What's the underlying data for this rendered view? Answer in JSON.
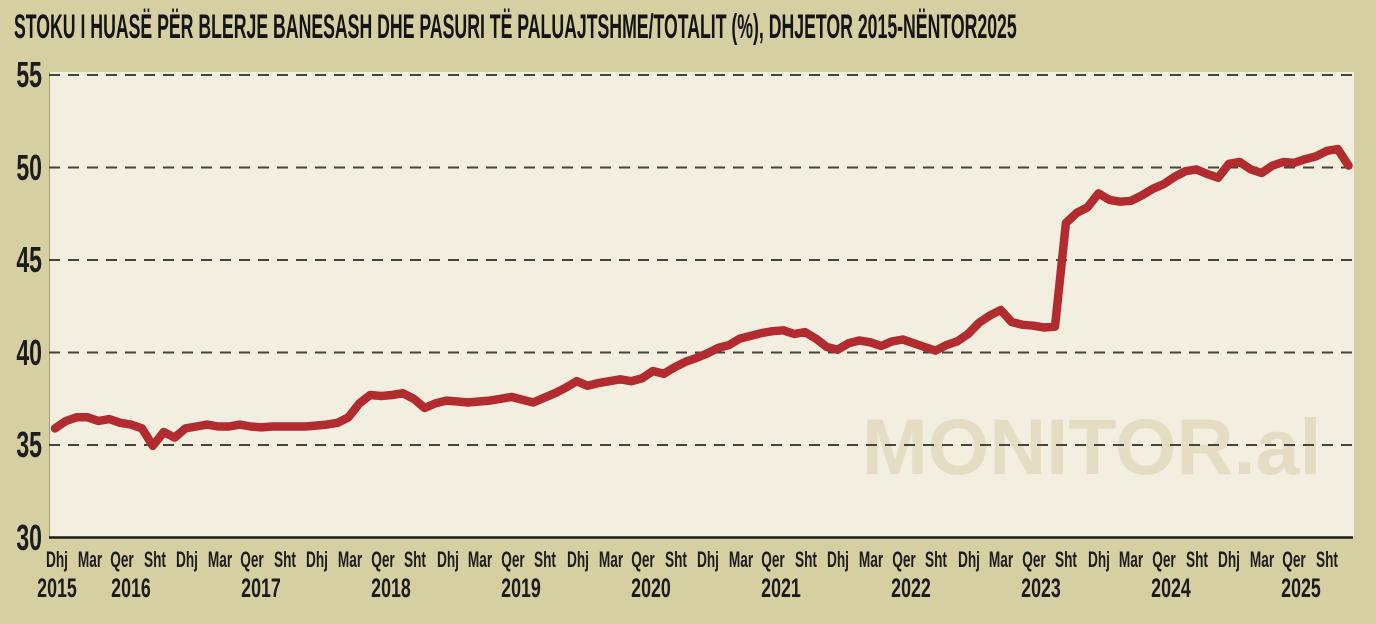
{
  "title": "STOKU I HUASË PËR BLERJE BANESASH DHE PASURI TË PALUAJTSHME/TOTALIT (%), DHJETOR 2015-NËNTOR2025",
  "watermark": "MONITOR.al",
  "colors": {
    "background": "#d6cfa2",
    "plot_background": "#f2efe1",
    "line": "#b22b2e",
    "grid": "#45453d",
    "axis": "#1c1c1c",
    "text": "#141414",
    "watermark": "#e4ddc4"
  },
  "chart_data": {
    "type": "line",
    "title": "STOKU I HUASË PËR BLERJE BANESASH DHE PASURI TË PALUAJTSHME/TOTALIT (%), DHJETOR 2015-NËNTOR2025",
    "series_name": "Stoku i huasë për blerje banesash dhe pasuri të paluajtshme / totalit (%)",
    "frequency": "monthly",
    "period_start": "Dhjetor 2015",
    "period_end": "Nëntor 2025",
    "ylim": [
      30,
      55
    ],
    "y_ticks": [
      30,
      35,
      40,
      45,
      50,
      55
    ],
    "grid": "horizontal dashed",
    "legend": "none",
    "x_tick_labels": [
      "Dhj",
      "Mar",
      "Qer",
      "Sht",
      "Dhj",
      "Mar",
      "Qer",
      "Sht",
      "Dhj",
      "Mar",
      "Qer",
      "Sht",
      "Dhj",
      "Mar",
      "Qer",
      "Sht",
      "Dhj",
      "Mar",
      "Qer",
      "Sht",
      "Dhj",
      "Mar",
      "Qer",
      "Sht",
      "Dhj",
      "Mar",
      "Qer",
      "Sht",
      "Dhj",
      "Mar",
      "Qer",
      "Sht",
      "Dhj",
      "Mar",
      "Qer",
      "Sht",
      "Dhj",
      "Mar",
      "Qer",
      "Sht"
    ],
    "year_labels": [
      "2015",
      "2016",
      "2017",
      "2018",
      "2019",
      "2020",
      "2021",
      "2022",
      "2023",
      "2024",
      "2025"
    ],
    "values": [
      35.9,
      36.3,
      36.5,
      36.5,
      36.3,
      36.4,
      36.2,
      36.1,
      35.9,
      34.95,
      35.7,
      35.4,
      35.9,
      36.0,
      36.1,
      36.0,
      36.0,
      36.1,
      36.0,
      35.95,
      36.0,
      36.0,
      36.0,
      36.0,
      36.05,
      36.1,
      36.2,
      36.5,
      37.25,
      37.7,
      37.65,
      37.7,
      37.8,
      37.5,
      37.0,
      37.25,
      37.4,
      37.35,
      37.3,
      37.35,
      37.4,
      37.5,
      37.6,
      37.45,
      37.3,
      37.55,
      37.8,
      38.1,
      38.45,
      38.2,
      38.35,
      38.45,
      38.55,
      38.45,
      38.6,
      39.0,
      38.85,
      39.2,
      39.5,
      39.7,
      39.95,
      40.25,
      40.4,
      40.75,
      40.9,
      41.05,
      41.15,
      41.2,
      41.0,
      41.1,
      40.75,
      40.3,
      40.15,
      40.5,
      40.65,
      40.55,
      40.35,
      40.6,
      40.7,
      40.5,
      40.3,
      40.1,
      40.4,
      40.6,
      41.0,
      41.6,
      42.0,
      42.3,
      41.65,
      41.5,
      41.45,
      41.35,
      41.4,
      47.0,
      47.55,
      47.85,
      48.6,
      48.25,
      48.15,
      48.2,
      48.5,
      48.85,
      49.1,
      49.5,
      49.8,
      49.9,
      49.65,
      49.45,
      50.2,
      50.3,
      49.9,
      49.7,
      50.1,
      50.3,
      50.25,
      50.45,
      50.6,
      50.9,
      51.0,
      50.1
    ]
  }
}
